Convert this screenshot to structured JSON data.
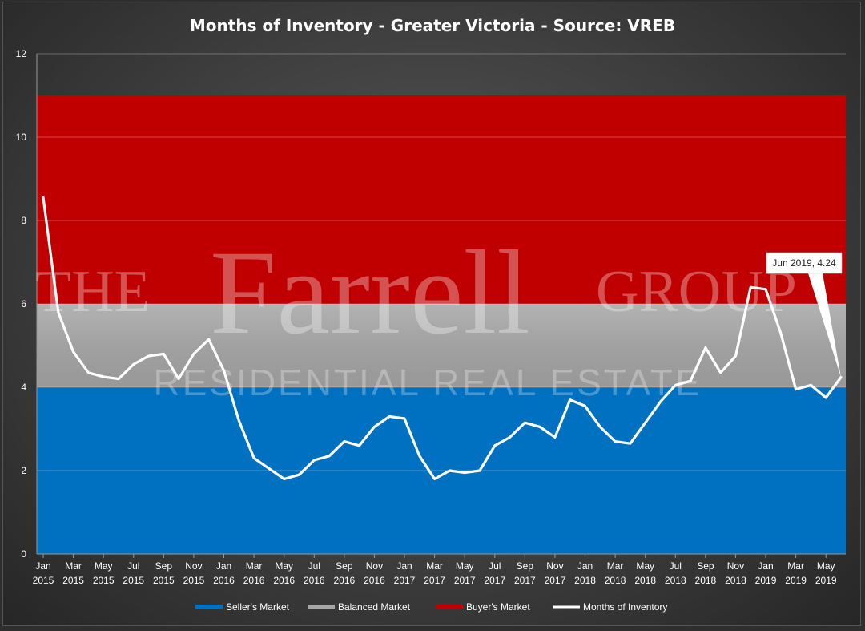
{
  "chart_data": {
    "type": "line",
    "title": "Months of Inventory - Greater Victoria - Source:  VREB",
    "xlabel": "",
    "ylabel": "",
    "ylim": [
      0,
      12
    ],
    "y_ticks": [
      "0",
      "2",
      "4",
      "6",
      "8",
      "10",
      "12"
    ],
    "grid": true,
    "legend_position": "bottom",
    "bands": [
      {
        "name": "Seller's Market",
        "from": 0,
        "to": 4,
        "color": "#0070c0"
      },
      {
        "name": "Balanced Market",
        "from": 4,
        "to": 6,
        "color": "#a6a6a6"
      },
      {
        "name": "Buyer's Market",
        "from": 6,
        "to": 11,
        "color": "#c00000"
      }
    ],
    "x_tick_labels": [
      {
        "month": "Jan",
        "year": "2015"
      },
      {
        "month": "Mar",
        "year": "2015"
      },
      {
        "month": "May",
        "year": "2015"
      },
      {
        "month": "Jul",
        "year": "2015"
      },
      {
        "month": "Sep",
        "year": "2015"
      },
      {
        "month": "Nov",
        "year": "2015"
      },
      {
        "month": "Jan",
        "year": "2016"
      },
      {
        "month": "Mar",
        "year": "2016"
      },
      {
        "month": "May",
        "year": "2016"
      },
      {
        "month": "Jul",
        "year": "2016"
      },
      {
        "month": "Sep",
        "year": "2016"
      },
      {
        "month": "Nov",
        "year": "2016"
      },
      {
        "month": "Jan",
        "year": "2017"
      },
      {
        "month": "Mar",
        "year": "2017"
      },
      {
        "month": "May",
        "year": "2017"
      },
      {
        "month": "Jul",
        "year": "2017"
      },
      {
        "month": "Sep",
        "year": "2017"
      },
      {
        "month": "Nov",
        "year": "2017"
      },
      {
        "month": "Jan",
        "year": "2018"
      },
      {
        "month": "Mar",
        "year": "2018"
      },
      {
        "month": "May",
        "year": "2018"
      },
      {
        "month": "Jul",
        "year": "2018"
      },
      {
        "month": "Sep",
        "year": "2018"
      },
      {
        "month": "Nov",
        "year": "2018"
      },
      {
        "month": "Jan",
        "year": "2019"
      },
      {
        "month": "Mar",
        "year": "2019"
      },
      {
        "month": "May",
        "year": "2019"
      }
    ],
    "series": [
      {
        "name": "Months of Inventory",
        "color": "#ffffff",
        "x": [
          "Jan 2015",
          "Feb 2015",
          "Mar 2015",
          "Apr 2015",
          "May 2015",
          "Jun 2015",
          "Jul 2015",
          "Aug 2015",
          "Sep 2015",
          "Oct 2015",
          "Nov 2015",
          "Dec 2015",
          "Jan 2016",
          "Feb 2016",
          "Mar 2016",
          "Apr 2016",
          "May 2016",
          "Jun 2016",
          "Jul 2016",
          "Aug 2016",
          "Sep 2016",
          "Oct 2016",
          "Nov 2016",
          "Dec 2016",
          "Jan 2017",
          "Feb 2017",
          "Mar 2017",
          "Apr 2017",
          "May 2017",
          "Jun 2017",
          "Jul 2017",
          "Aug 2017",
          "Sep 2017",
          "Oct 2017",
          "Nov 2017",
          "Dec 2017",
          "Jan 2018",
          "Feb 2018",
          "Mar 2018",
          "Apr 2018",
          "May 2018",
          "Jun 2018",
          "Jul 2018",
          "Aug 2018",
          "Sep 2018",
          "Oct 2018",
          "Nov 2018",
          "Dec 2018",
          "Jan 2019",
          "Feb 2019",
          "Mar 2019",
          "Apr 2019",
          "May 2019",
          "Jun 2019"
        ],
        "values": [
          8.55,
          5.8,
          4.85,
          4.35,
          4.25,
          4.2,
          4.55,
          4.75,
          4.8,
          4.2,
          4.8,
          5.15,
          4.4,
          3.2,
          2.3,
          2.05,
          1.8,
          1.9,
          2.25,
          2.35,
          2.7,
          2.6,
          3.05,
          3.3,
          3.25,
          2.35,
          1.8,
          2.0,
          1.95,
          2.0,
          2.6,
          2.8,
          3.15,
          3.05,
          2.8,
          3.7,
          3.55,
          3.05,
          2.7,
          2.65,
          3.15,
          3.65,
          4.05,
          4.15,
          4.95,
          4.35,
          4.75,
          6.4,
          6.35,
          5.3,
          3.95,
          4.05,
          3.75,
          4.24
        ]
      }
    ],
    "annotation": {
      "label": "Jun 2019, 4.24",
      "x": "Jun 2019",
      "y": 4.24
    }
  },
  "legend": {
    "sellers": "Seller's Market",
    "balanced": "Balanced Market",
    "buyers": "Buyer's Market",
    "line": "Months of Inventory"
  },
  "watermark": {
    "the": "THE",
    "farrell": "Farrell",
    "group": "GROUP",
    "subtitle": "RESIDENTIAL REAL ESTATE"
  }
}
